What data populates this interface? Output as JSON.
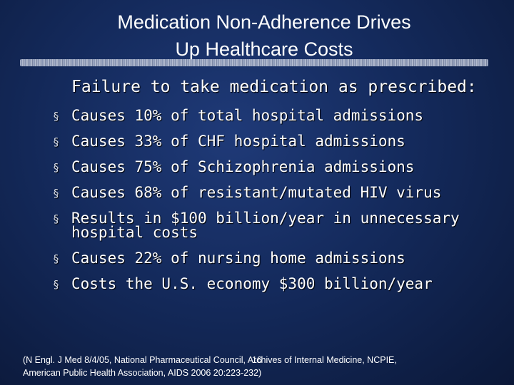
{
  "slide": {
    "title_line1": "Medication Non-Adherence Drives",
    "title_line2": "Up Healthcare Costs",
    "subtitle": "Failure to take medication as prescribed:",
    "bullet_marker": "§",
    "bullets": [
      "Causes 10% of total hospital admissions",
      "Causes 33% of CHF hospital admissions",
      "Causes 75% of Schizophrenia admissions",
      "Causes 68% of resistant/mutated HIV virus",
      "Results in $100 billion/year in unnecessary hospital costs",
      "Causes 22% of nursing home admissions",
      "Costs the U.S. economy $300 billion/year"
    ],
    "source_line1": "(N Engl. J Med 8/4/05, National Pharmaceutical Council, Archives of Internal Medicine, NCPIE,",
    "source_line2": "American Public Health Association, AIDS 2006 20:223-232)",
    "page_number": "16"
  }
}
